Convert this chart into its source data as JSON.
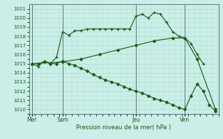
{
  "xlabel": "Pression niveau de la mer( hPa )",
  "ylim": [
    1009.5,
    1021.5
  ],
  "yticks": [
    1010,
    1011,
    1012,
    1013,
    1014,
    1015,
    1016,
    1017,
    1018,
    1019,
    1020,
    1021
  ],
  "bg_color": "#cceee8",
  "grid_color": "#aaddcc",
  "line_color": "#1a5c1a",
  "day_labels": [
    "Mer",
    "Sam",
    "Jeu",
    "Ven"
  ],
  "day_positions": [
    0,
    5,
    17,
    25
  ],
  "vline_positions": [
    0,
    5,
    17,
    25
  ],
  "xlim": [
    -0.5,
    30.5
  ],
  "line1_x": [
    0,
    1,
    2,
    3,
    4,
    5,
    6,
    7,
    8,
    9,
    10,
    11,
    12,
    13,
    14,
    15,
    16,
    17,
    18,
    19,
    20,
    21,
    22,
    23,
    24,
    25,
    26,
    27,
    28
  ],
  "line1_y": [
    1015.0,
    1014.7,
    1015.3,
    1015.0,
    1015.7,
    1018.5,
    1018.1,
    1018.6,
    1018.6,
    1018.8,
    1018.8,
    1018.8,
    1018.8,
    1018.8,
    1018.8,
    1018.8,
    1018.8,
    1020.2,
    1020.4,
    1020.0,
    1020.6,
    1020.4,
    1019.5,
    1018.5,
    1018.0,
    1017.8,
    1017.2,
    1016.0,
    1015.0
  ],
  "line2_x": [
    0,
    5,
    8,
    11,
    14,
    17,
    20,
    23,
    25,
    27,
    30
  ],
  "line2_y": [
    1015.0,
    1015.2,
    1015.5,
    1016.0,
    1016.5,
    1017.0,
    1017.5,
    1017.8,
    1017.8,
    1015.5,
    1010.0
  ],
  "line3_x": [
    0,
    1,
    2,
    3,
    4,
    5,
    6,
    7,
    8,
    9,
    10,
    11,
    12,
    13,
    14,
    15,
    16,
    17,
    18,
    19,
    20,
    21,
    22,
    23,
    24,
    25,
    26,
    27,
    28,
    29,
    30
  ],
  "line3_y": [
    1015.0,
    1015.0,
    1015.2,
    1015.0,
    1015.0,
    1015.3,
    1015.0,
    1014.8,
    1014.5,
    1014.2,
    1013.8,
    1013.5,
    1013.2,
    1013.0,
    1012.8,
    1012.5,
    1012.2,
    1012.0,
    1011.8,
    1011.5,
    1011.2,
    1011.0,
    1010.8,
    1010.5,
    1010.2,
    1010.0,
    1011.5,
    1012.8,
    1012.0,
    1010.5,
    1009.8
  ]
}
